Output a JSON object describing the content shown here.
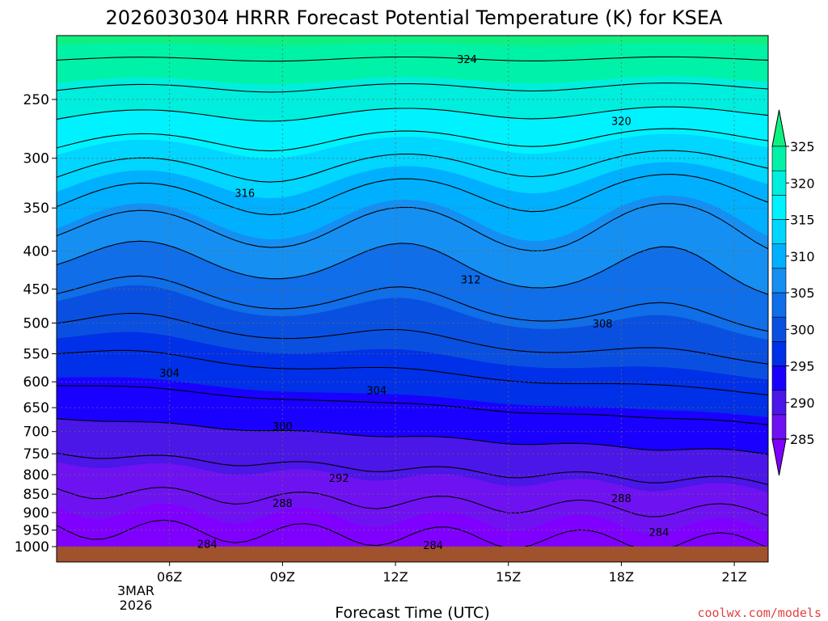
{
  "chart_data": {
    "type": "heatmap",
    "title": "2026030304 HRRR Forecast Potential Temperature (K) for KSEA",
    "xlabel": "Forecast Time (UTC)",
    "ylabel": "",
    "y_scale": "log-pressure",
    "y_ticks": [
      250,
      300,
      350,
      400,
      450,
      500,
      550,
      600,
      650,
      700,
      750,
      800,
      850,
      900,
      950,
      1000
    ],
    "x_ticks": [
      "06Z",
      "09Z",
      "12Z",
      "15Z",
      "18Z",
      "21Z"
    ],
    "x_date_label": [
      "3MAR",
      "2026"
    ],
    "x_range_hours": [
      3,
      21.9
    ],
    "y_range_hPa": [
      208,
      1030
    ],
    "grid": true,
    "colorbar": {
      "ticks": [
        285,
        290,
        295,
        300,
        305,
        310,
        315,
        320,
        325
      ],
      "colors": [
        "#8000ff",
        "#6f12f2",
        "#4b16e8",
        "#1a00ff",
        "#0030e8",
        "#0a50e0",
        "#0f6ee8",
        "#1590f2",
        "#00b0ff",
        "#00d6ff",
        "#00f2ff",
        "#00eedd",
        "#00f2a8",
        "#10f080"
      ],
      "extend": "both"
    },
    "contour_interval_K": 2,
    "contour_labels": [
      {
        "value": "324",
        "time": 13.9,
        "pressure": 221
      },
      {
        "value": "320",
        "time": 18.0,
        "pressure": 268
      },
      {
        "value": "316",
        "time": 8.0,
        "pressure": 335
      },
      {
        "value": "312",
        "time": 14.0,
        "pressure": 438
      },
      {
        "value": "308",
        "time": 17.5,
        "pressure": 502
      },
      {
        "value": "304",
        "time": 6.0,
        "pressure": 585
      },
      {
        "value": "304",
        "time": 11.5,
        "pressure": 617
      },
      {
        "value": "300",
        "time": 9.0,
        "pressure": 690
      },
      {
        "value": "292",
        "time": 10.5,
        "pressure": 810
      },
      {
        "value": "288",
        "time": 9.0,
        "pressure": 876
      },
      {
        "value": "288",
        "time": 18.0,
        "pressure": 863
      },
      {
        "value": "284",
        "time": 7.0,
        "pressure": 994
      },
      {
        "value": "284",
        "time": 13.0,
        "pressure": 998
      },
      {
        "value": "284",
        "time": 19.0,
        "pressure": 958
      }
    ],
    "ground_color": "#a0522d"
  },
  "credit": "coolwx.com/models"
}
